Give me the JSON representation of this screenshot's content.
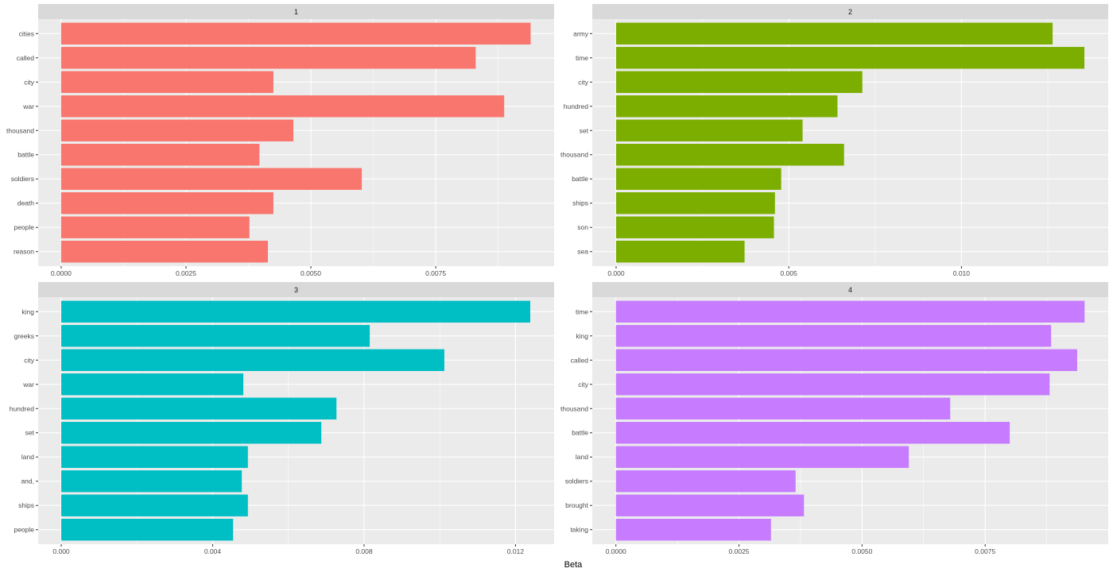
{
  "chart_data": {
    "type": "bar",
    "orientation": "horizontal",
    "xlabel": "Beta",
    "ylabel": "",
    "grid": true,
    "legend": "none",
    "panels": [
      {
        "title": "1",
        "color": "#F8766D",
        "xlim": [
          -0.00046,
          0.00987
        ],
        "ticks": [
          0,
          0.0025,
          0.005,
          0.0075
        ],
        "tick_labels": [
          "0.0000",
          "0.0025",
          "0.0050",
          "0.0075"
        ],
        "categories": [
          "cities",
          "called",
          "city",
          "war",
          "thousand",
          "battle",
          "soldiers",
          "death",
          "people",
          "reason"
        ],
        "values": [
          0.0094,
          0.0083,
          0.00425,
          0.00887,
          0.00465,
          0.00397,
          0.00602,
          0.00425,
          0.00377,
          0.00414
        ]
      },
      {
        "title": "2",
        "color": "#7CAE00",
        "xlim": [
          -0.00069,
          0.01425
        ],
        "ticks": [
          0,
          0.005,
          0.01
        ],
        "tick_labels": [
          "0.000",
          "0.005",
          "0.010"
        ],
        "categories": [
          "army",
          "time",
          "city",
          "hundred",
          "set",
          "thousand",
          "battle",
          "ships",
          "son",
          "sea"
        ],
        "values": [
          0.01264,
          0.01356,
          0.00713,
          0.00641,
          0.0054,
          0.0066,
          0.00478,
          0.0046,
          0.00457,
          0.00372
        ]
      },
      {
        "title": "3",
        "color": "#00BFC4",
        "xlim": [
          -0.00061,
          0.01302
        ],
        "ticks": [
          0,
          0.004,
          0.008,
          0.012
        ],
        "tick_labels": [
          "0.000",
          "0.004",
          "0.008",
          "0.012"
        ],
        "categories": [
          "king",
          "greeks",
          "city",
          "war",
          "hundred",
          "set",
          "land",
          "and,",
          "ships",
          "people"
        ],
        "values": [
          0.01239,
          0.00815,
          0.01012,
          0.00481,
          0.00727,
          0.00687,
          0.00493,
          0.00477,
          0.00493,
          0.00454
        ]
      },
      {
        "title": "4",
        "color": "#C77CFF",
        "xlim": [
          -0.00048,
          0.01
        ],
        "ticks": [
          0,
          0.0025,
          0.005,
          0.0075
        ],
        "tick_labels": [
          "0.0000",
          "0.0025",
          "0.0050",
          "0.0075"
        ],
        "categories": [
          "time",
          "king",
          "called",
          "city",
          "thousand",
          "battle",
          "land",
          "soldiers",
          "brought",
          "taking"
        ],
        "values": [
          0.00952,
          0.00884,
          0.00937,
          0.00881,
          0.00679,
          0.008,
          0.00595,
          0.00365,
          0.00382,
          0.00315
        ]
      }
    ]
  }
}
